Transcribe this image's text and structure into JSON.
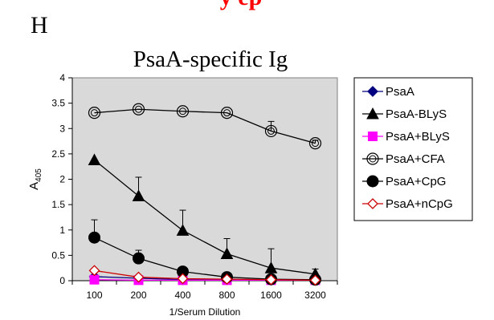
{
  "header": {
    "panel_letter": "H",
    "cut_off_caption": "y ep"
  },
  "chart_data": {
    "type": "line",
    "title": "PsaA-specific Ig",
    "xlabel": "1/Serum Dilution",
    "ylabel": "A405",
    "ylabel_main": "A",
    "ylabel_sub": "405",
    "categories": [
      "100",
      "200",
      "400",
      "800",
      "1600",
      "3200"
    ],
    "ylim": [
      0,
      4
    ],
    "yticks": [
      "0",
      "0.5",
      "1",
      "1.5",
      "2",
      "2.5",
      "3",
      "3.5",
      "4"
    ],
    "grid": false,
    "plot_background": "#d9d9d9",
    "legend_position": "right",
    "series": [
      {
        "name": "PsaA",
        "values": [
          0.08,
          0.05,
          0.02,
          0.02,
          0.01,
          0.01
        ],
        "errors": [
          0,
          0,
          0,
          0,
          0,
          0
        ],
        "marker": "diamond",
        "color": "#000080",
        "fill": "#000080"
      },
      {
        "name": "PsaA-BLyS",
        "values": [
          2.38,
          1.67,
          0.99,
          0.53,
          0.25,
          0.13
        ],
        "errors": [
          0,
          0.37,
          0.4,
          0.3,
          0.38,
          0.1
        ],
        "marker": "triangle",
        "color": "#000000",
        "fill": "#000000"
      },
      {
        "name": "PsaA+BLyS",
        "values": [
          0.02,
          0.01,
          0.01,
          0.01,
          0.01,
          0.01
        ],
        "errors": [
          0,
          0,
          0,
          0,
          0,
          0
        ],
        "marker": "square",
        "color": "#ff00ff",
        "fill": "#ff00ff"
      },
      {
        "name": "PsaA+CFA",
        "values": [
          3.31,
          3.38,
          3.34,
          3.31,
          2.95,
          2.71
        ],
        "errors": [
          0,
          0,
          0,
          0,
          0.19,
          0.06
        ],
        "marker": "circle-open",
        "color": "#000000",
        "fill": "none"
      },
      {
        "name": "PsaA+CpG",
        "values": [
          0.85,
          0.44,
          0.18,
          0.07,
          0.03,
          0.02
        ],
        "errors": [
          0.35,
          0.16,
          0,
          0,
          0,
          0
        ],
        "marker": "circle",
        "color": "#000000",
        "fill": "#000000"
      },
      {
        "name": "PsaA+nCpG",
        "values": [
          0.2,
          0.07,
          0.04,
          0.03,
          0.02,
          0.01
        ],
        "errors": [
          0,
          0,
          0,
          0,
          0,
          0
        ],
        "marker": "diamond-open",
        "color": "#cc0000",
        "fill": "#ffffff"
      }
    ]
  }
}
